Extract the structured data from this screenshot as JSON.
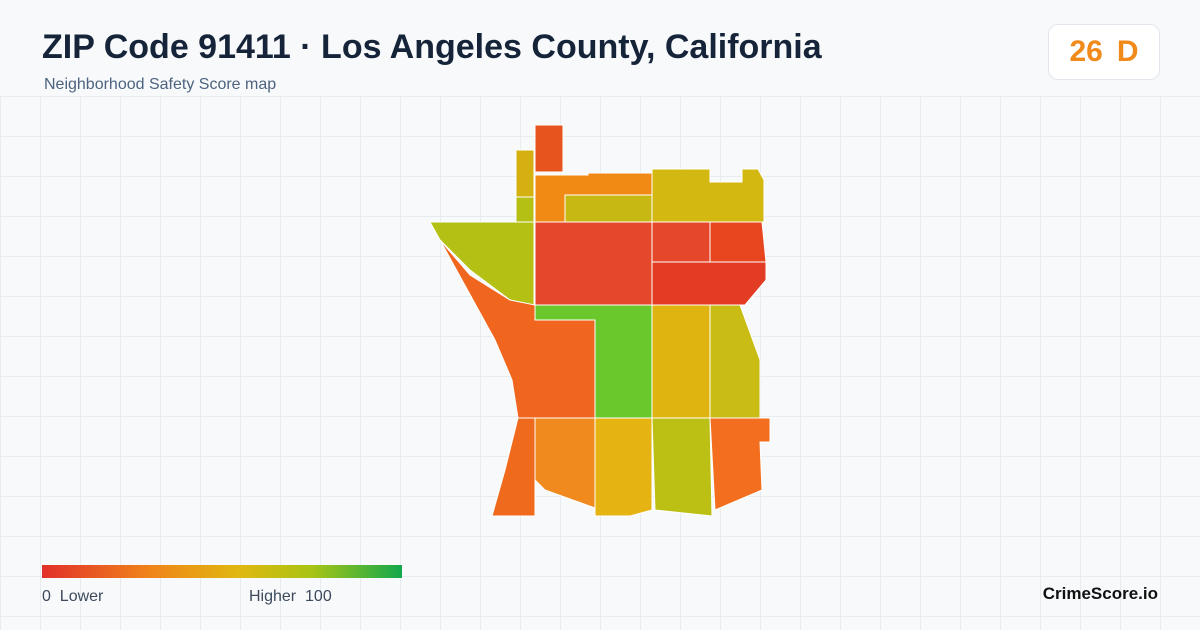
{
  "header": {
    "title": "ZIP Code 91411 · Los Angeles County, California",
    "subtitle": "Neighborhood Safety Score map"
  },
  "score": {
    "value": 26,
    "grade": "D"
  },
  "legend": {
    "min": 0,
    "min_label": "Lower",
    "max_label": "Higher",
    "max": 100
  },
  "brand": "CrimeScore.io"
}
